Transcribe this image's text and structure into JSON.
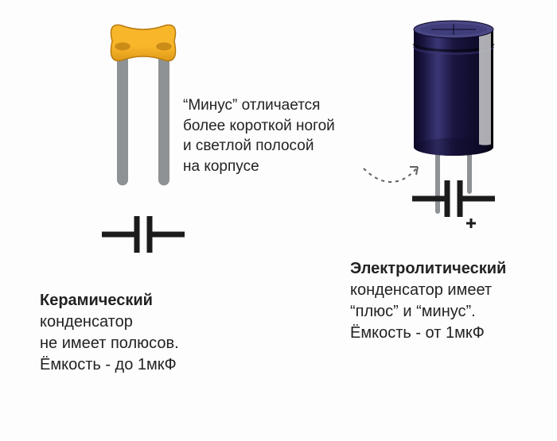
{
  "annotation": {
    "line1": "“Минус” отличается",
    "line2": "более короткой ногой",
    "line3": "и светлой полосой",
    "line4": "на корпусе"
  },
  "ceramic": {
    "title_bold": "Керамический",
    "title_rest": " конденсатор",
    "line2": "не имеет полюсов.",
    "line3": "Ёмкость - до 1мкФ",
    "illustration": {
      "body_color_top": "#f8b62a",
      "body_color_bottom": "#de9a18",
      "body_edge": "#b87a10",
      "leg_color": "#8f9295",
      "leg_width": 14,
      "body_w": 86,
      "body_h": 48,
      "leg_h": 170,
      "leg_spread": 52
    },
    "symbol": {
      "stroke": "#1b1b1b",
      "stroke_w": 7,
      "gap": 16,
      "plate_h": 46,
      "lead_len": 44
    }
  },
  "electrolytic": {
    "title_bold": "Электролитический",
    "line2": "конденсатор имеет",
    "line3": "“плюс” и “минус”.",
    "line4": "Ёмкость - от 1мкФ",
    "illustration": {
      "body_color": "#1a1540",
      "body_shine": "#3a3775",
      "body_dark": "#0b0824",
      "top_color": "#4a4785",
      "stripe_color": "#bfc0c3",
      "leg_color": "#8f9295",
      "leg_width": 6,
      "body_w": 100,
      "body_h": 170,
      "leg_long": 70,
      "leg_short": 45,
      "leg_spread": 40
    },
    "symbol": {
      "stroke": "#1b1b1b",
      "stroke_w": 7,
      "gap": 16,
      "plate_h": 46,
      "lead_len": 44,
      "plus_size": 12
    }
  },
  "arrow": {
    "color": "#616161",
    "dash": "4,5",
    "width": 2
  },
  "background": "#fdfdfd"
}
